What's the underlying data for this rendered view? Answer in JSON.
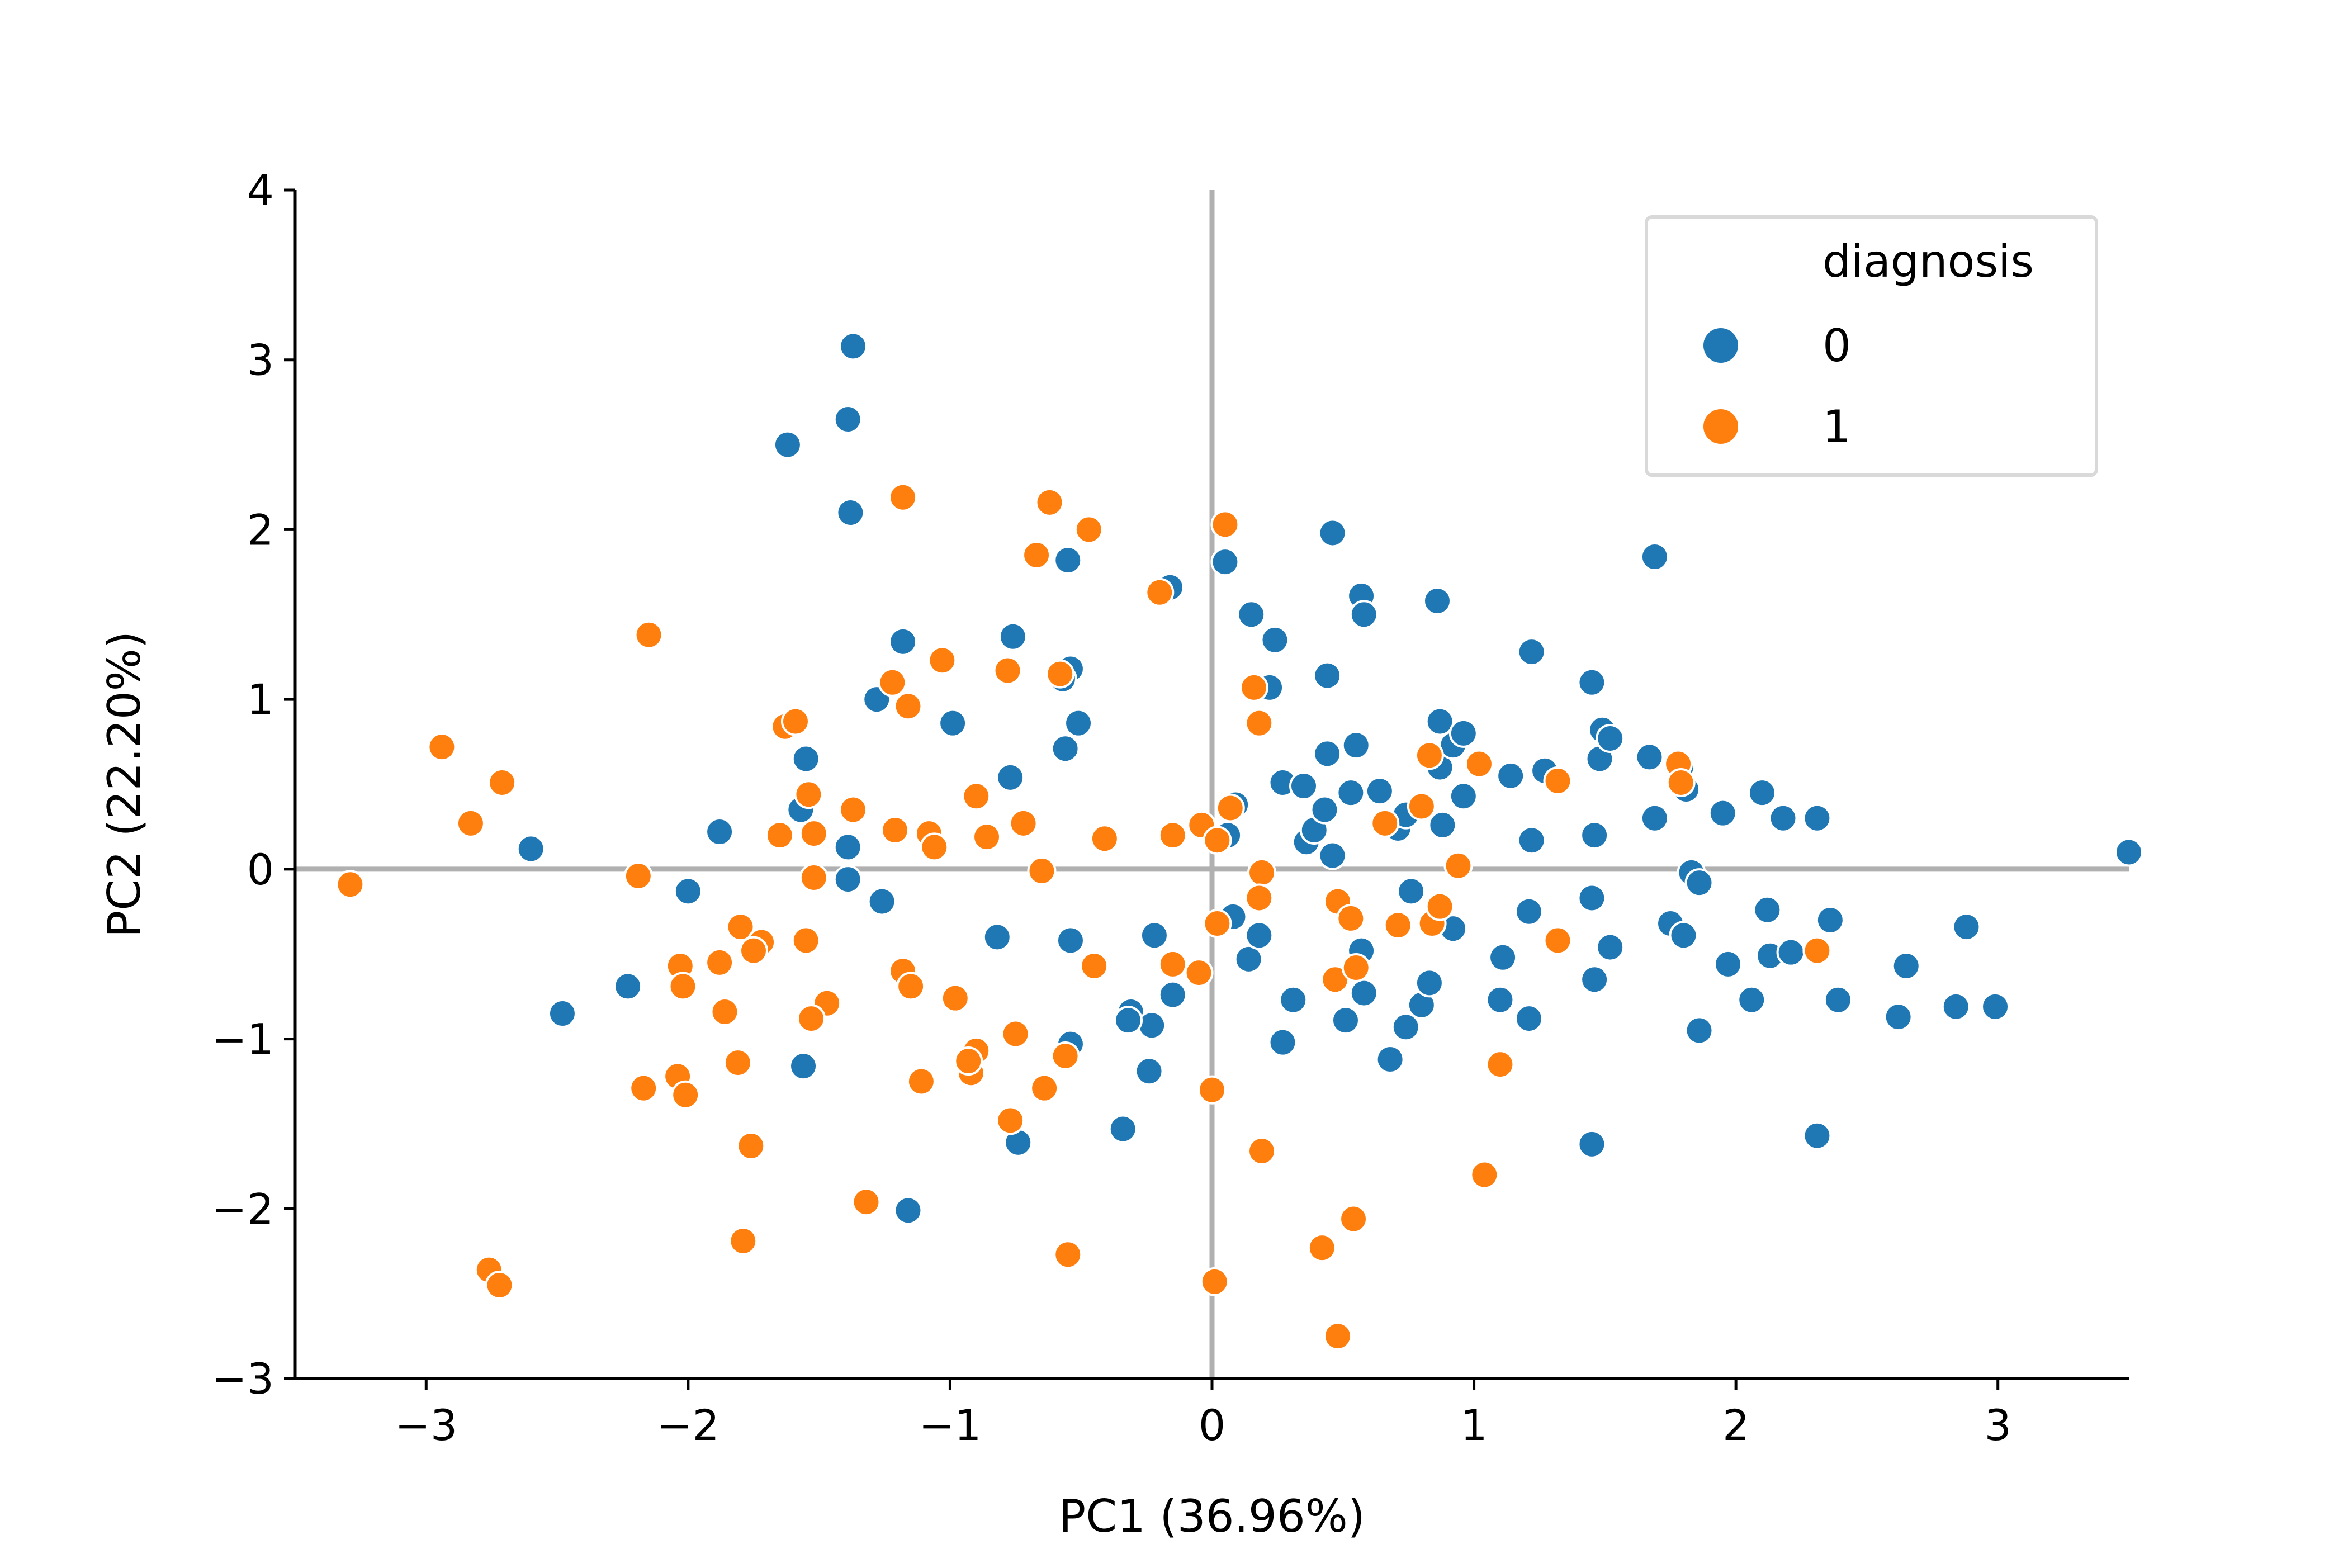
{
  "chart_data": {
    "type": "scatter",
    "title": "",
    "xlabel": "PC1 (36.96%)",
    "ylabel": "PC2 (22.20%)",
    "xlim": [
      -3.5,
      3.5
    ],
    "ylim": [
      -3,
      4
    ],
    "xticks": [
      -3,
      -2,
      -1,
      0,
      1,
      2,
      3
    ],
    "xtick_labels": [
      "−3",
      "−2",
      "−1",
      "0",
      "1",
      "2",
      "3"
    ],
    "yticks": [
      -3,
      -2,
      -1,
      0,
      1,
      2,
      3,
      4
    ],
    "ytick_labels": [
      "−3",
      "−2",
      "−1",
      "0",
      "1",
      "2",
      "3",
      "4"
    ],
    "reference_lines": {
      "x": 0,
      "y": 0,
      "color": "#b0b0b0"
    },
    "grid": false,
    "legend": {
      "title": "diagnosis",
      "placement": "top-right"
    },
    "series": [
      {
        "name": "0",
        "color": "#1f77b4",
        "points": [
          [
            -1.37,
            3.08
          ],
          [
            -1.39,
            2.65
          ],
          [
            -1.62,
            2.5
          ],
          [
            -1.38,
            2.1
          ],
          [
            -0.55,
            1.82
          ],
          [
            -0.16,
            1.66
          ],
          [
            0.05,
            1.81
          ],
          [
            0.46,
            1.98
          ],
          [
            0.15,
            1.5
          ],
          [
            0.24,
            1.35
          ],
          [
            0.57,
            1.61
          ],
          [
            0.58,
            1.5
          ],
          [
            0.86,
            1.58
          ],
          [
            1.22,
            1.28
          ],
          [
            1.69,
            1.84
          ],
          [
            0.44,
            1.14
          ],
          [
            0.22,
            1.07
          ],
          [
            -1.18,
            1.34
          ],
          [
            -0.76,
            1.37
          ],
          [
            -0.54,
            1.18
          ],
          [
            -0.57,
            1.12
          ],
          [
            -1.28,
            1.0
          ],
          [
            -0.99,
            0.86
          ],
          [
            -0.51,
            0.86
          ],
          [
            -0.56,
            0.71
          ],
          [
            -1.55,
            0.65
          ],
          [
            -0.77,
            0.54
          ],
          [
            -1.57,
            0.35
          ],
          [
            -1.88,
            0.22
          ],
          [
            -1.39,
            0.13
          ],
          [
            -2.6,
            0.12
          ],
          [
            -2.0,
            -0.13
          ],
          [
            -1.39,
            -0.06
          ],
          [
            -1.26,
            -0.19
          ],
          [
            -0.82,
            -0.4
          ],
          [
            -0.54,
            -0.42
          ],
          [
            -2.23,
            -0.69
          ],
          [
            -2.48,
            -0.85
          ],
          [
            -1.56,
            -1.16
          ],
          [
            -1.16,
            -2.01
          ],
          [
            -0.74,
            -1.61
          ],
          [
            -0.34,
            -1.53
          ],
          [
            -0.24,
            -1.19
          ],
          [
            -0.31,
            -0.84
          ],
          [
            -0.23,
            -0.92
          ],
          [
            -0.32,
            -0.89
          ],
          [
            -0.15,
            -0.74
          ],
          [
            -0.54,
            -1.03
          ],
          [
            -0.22,
            -0.39
          ],
          [
            0.08,
            -0.28
          ],
          [
            0.14,
            -0.53
          ],
          [
            0.18,
            -0.39
          ],
          [
            0.09,
            0.38
          ],
          [
            0.06,
            0.2
          ],
          [
            0.27,
            0.51
          ],
          [
            0.35,
            0.49
          ],
          [
            0.36,
            0.16
          ],
          [
            0.39,
            0.23
          ],
          [
            0.44,
            0.68
          ],
          [
            0.43,
            0.35
          ],
          [
            0.46,
            0.08
          ],
          [
            0.53,
            0.45
          ],
          [
            0.55,
            0.73
          ],
          [
            0.64,
            0.46
          ],
          [
            0.71,
            0.24
          ],
          [
            0.74,
            0.32
          ],
          [
            0.87,
            0.87
          ],
          [
            0.87,
            0.6
          ],
          [
            0.88,
            0.26
          ],
          [
            0.92,
            0.73
          ],
          [
            0.96,
            0.8
          ],
          [
            0.96,
            0.43
          ],
          [
            1.14,
            0.55
          ],
          [
            1.22,
            0.17
          ],
          [
            1.27,
            0.58
          ],
          [
            1.45,
            1.1
          ],
          [
            1.46,
            0.2
          ],
          [
            1.48,
            0.65
          ],
          [
            1.49,
            0.82
          ],
          [
            1.52,
            0.77
          ],
          [
            1.67,
            0.66
          ],
          [
            1.69,
            0.3
          ],
          [
            1.79,
            0.6
          ],
          [
            1.81,
            0.47
          ],
          [
            1.95,
            0.33
          ],
          [
            2.1,
            0.45
          ],
          [
            2.18,
            0.3
          ],
          [
            2.31,
            0.3
          ],
          [
            3.5,
            0.1
          ],
          [
            0.76,
            -0.13
          ],
          [
            1.21,
            -0.25
          ],
          [
            1.45,
            -0.17
          ],
          [
            1.83,
            -0.02
          ],
          [
            1.86,
            -0.08
          ],
          [
            1.75,
            -0.32
          ],
          [
            1.8,
            -0.39
          ],
          [
            1.52,
            -0.46
          ],
          [
            1.46,
            -0.65
          ],
          [
            1.11,
            -0.52
          ],
          [
            0.92,
            -0.35
          ],
          [
            0.58,
            -0.73
          ],
          [
            0.51,
            -0.89
          ],
          [
            0.31,
            -0.77
          ],
          [
            0.27,
            -1.02
          ],
          [
            0.74,
            -0.93
          ],
          [
            0.8,
            -0.8
          ],
          [
            0.83,
            -0.67
          ],
          [
            0.68,
            -1.12
          ],
          [
            1.1,
            -0.77
          ],
          [
            1.21,
            -0.88
          ],
          [
            1.45,
            -1.62
          ],
          [
            1.86,
            -0.95
          ],
          [
            1.97,
            -0.56
          ],
          [
            2.06,
            -0.77
          ],
          [
            2.12,
            -0.24
          ],
          [
            2.13,
            -0.51
          ],
          [
            2.21,
            -0.49
          ],
          [
            2.36,
            -0.3
          ],
          [
            2.39,
            -0.77
          ],
          [
            2.62,
            -0.87
          ],
          [
            2.65,
            -0.57
          ],
          [
            2.84,
            -0.81
          ],
          [
            2.88,
            -0.34
          ],
          [
            2.99,
            -0.81
          ],
          [
            2.31,
            -1.57
          ],
          [
            0.57,
            -0.48
          ]
        ]
      },
      {
        "name": "1",
        "color": "#ff7f0e",
        "points": [
          [
            -1.18,
            2.19
          ],
          [
            -0.62,
            2.16
          ],
          [
            -0.47,
            2.0
          ],
          [
            -0.67,
            1.85
          ],
          [
            0.05,
            2.03
          ],
          [
            -0.2,
            1.63
          ],
          [
            -2.15,
            1.38
          ],
          [
            -1.03,
            1.23
          ],
          [
            -0.78,
            1.17
          ],
          [
            -0.58,
            1.15
          ],
          [
            -1.22,
            1.1
          ],
          [
            -1.16,
            0.96
          ],
          [
            0.16,
            1.07
          ],
          [
            0.18,
            0.86
          ],
          [
            -1.63,
            0.84
          ],
          [
            -1.59,
            0.87
          ],
          [
            -2.94,
            0.72
          ],
          [
            -2.71,
            0.51
          ],
          [
            -2.83,
            0.27
          ],
          [
            -1.54,
            0.44
          ],
          [
            -1.37,
            0.35
          ],
          [
            -1.65,
            0.2
          ],
          [
            -1.52,
            0.21
          ],
          [
            -1.21,
            0.23
          ],
          [
            -1.08,
            0.21
          ],
          [
            -1.06,
            0.13
          ],
          [
            -0.9,
            0.43
          ],
          [
            -0.86,
            0.19
          ],
          [
            -0.72,
            0.27
          ],
          [
            -0.41,
            0.18
          ],
          [
            -0.15,
            0.2
          ],
          [
            -0.04,
            0.26
          ],
          [
            0.07,
            0.36
          ],
          [
            0.02,
            0.17
          ],
          [
            -0.65,
            -0.01
          ],
          [
            -3.29,
            -0.09
          ],
          [
            -2.19,
            -0.04
          ],
          [
            -1.52,
            -0.05
          ],
          [
            -1.8,
            -0.34
          ],
          [
            -1.55,
            -0.42
          ],
          [
            -1.72,
            -0.43
          ],
          [
            -1.75,
            -0.48
          ],
          [
            -1.88,
            -0.55
          ],
          [
            -2.03,
            -0.57
          ],
          [
            -2.02,
            -0.69
          ],
          [
            -1.86,
            -0.84
          ],
          [
            -1.47,
            -0.79
          ],
          [
            -1.53,
            -0.88
          ],
          [
            -1.18,
            -0.6
          ],
          [
            -1.15,
            -0.69
          ],
          [
            -0.98,
            -0.76
          ],
          [
            -0.45,
            -0.57
          ],
          [
            -0.15,
            -0.56
          ],
          [
            -0.05,
            -0.61
          ],
          [
            0.02,
            -0.32
          ],
          [
            0.19,
            -0.02
          ],
          [
            0.18,
            -0.17
          ],
          [
            0.48,
            -0.19
          ],
          [
            0.53,
            -0.29
          ],
          [
            0.71,
            -0.33
          ],
          [
            0.84,
            -0.32
          ],
          [
            0.87,
            -0.22
          ],
          [
            0.94,
            0.02
          ],
          [
            0.66,
            0.27
          ],
          [
            0.8,
            0.37
          ],
          [
            1.02,
            0.62
          ],
          [
            1.32,
            0.52
          ],
          [
            1.78,
            0.62
          ],
          [
            1.79,
            0.51
          ],
          [
            0.83,
            0.67
          ],
          [
            1.32,
            -0.42
          ],
          [
            0.47,
            -0.65
          ],
          [
            0.55,
            -0.58
          ],
          [
            2.31,
            -0.48
          ],
          [
            -2.17,
            -1.29
          ],
          [
            -2.04,
            -1.22
          ],
          [
            -2.01,
            -1.33
          ],
          [
            -1.81,
            -1.14
          ],
          [
            -1.76,
            -1.63
          ],
          [
            -1.79,
            -2.19
          ],
          [
            -2.76,
            -2.36
          ],
          [
            -2.72,
            -2.45
          ],
          [
            -1.32,
            -1.96
          ],
          [
            -0.9,
            -1.07
          ],
          [
            -0.92,
            -1.2
          ],
          [
            -0.93,
            -1.13
          ],
          [
            -0.75,
            -0.97
          ],
          [
            -0.64,
            -1.29
          ],
          [
            -0.77,
            -1.48
          ],
          [
            -1.11,
            -1.25
          ],
          [
            -0.56,
            -1.1
          ],
          [
            -0.55,
            -2.27
          ],
          [
            0.0,
            -1.3
          ],
          [
            0.01,
            -2.43
          ],
          [
            0.19,
            -1.66
          ],
          [
            0.42,
            -2.23
          ],
          [
            0.48,
            -2.75
          ],
          [
            0.54,
            -2.06
          ],
          [
            1.04,
            -1.8
          ],
          [
            1.1,
            -1.15
          ]
        ]
      }
    ]
  }
}
